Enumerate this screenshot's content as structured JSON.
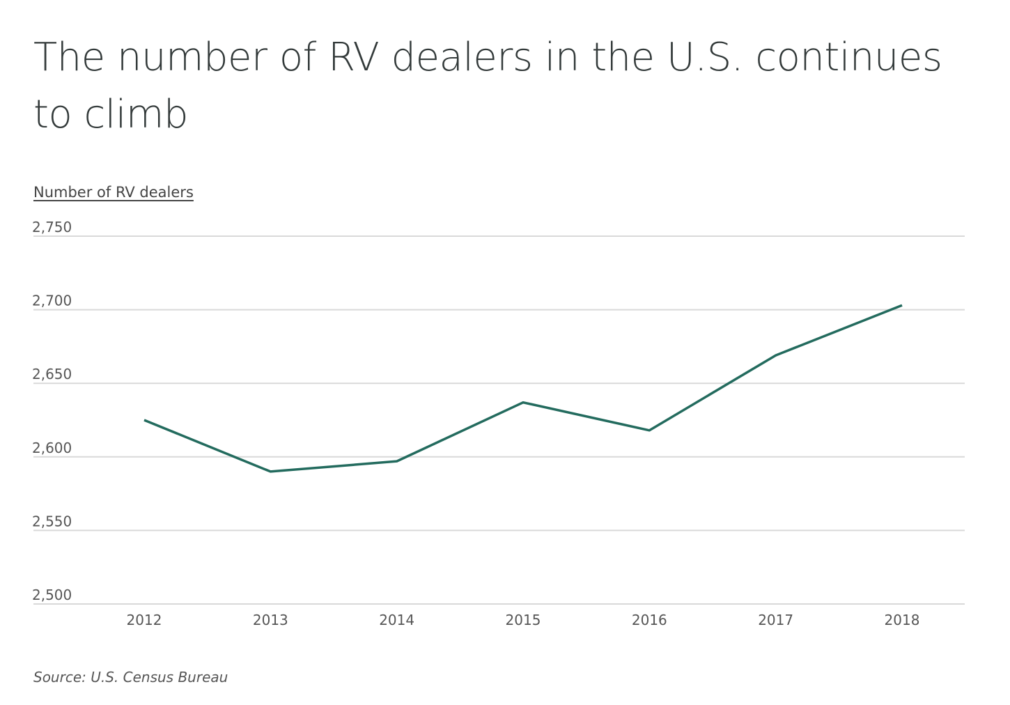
{
  "chart_data": {
    "type": "line",
    "title": "The number of RV dealers in the U.S. continues to climb",
    "ylabel": "Number of RV dealers",
    "xlabel": "",
    "categories": [
      "2012",
      "2013",
      "2014",
      "2015",
      "2016",
      "2017",
      "2018"
    ],
    "series": [
      {
        "values": [
          2625,
          2590,
          2597,
          2637,
          2618,
          2669,
          2703
        ]
      }
    ],
    "ylim": [
      2500,
      2750
    ],
    "yticks": [
      2500,
      2550,
      2600,
      2650,
      2700,
      2750
    ],
    "ytick_labels": [
      "2,500",
      "2,550",
      "2,600",
      "2,650",
      "2,700",
      "2,750"
    ],
    "grid": true,
    "line_color": "#236b5e",
    "source": "Source:  U.S. Census Bureau"
  }
}
